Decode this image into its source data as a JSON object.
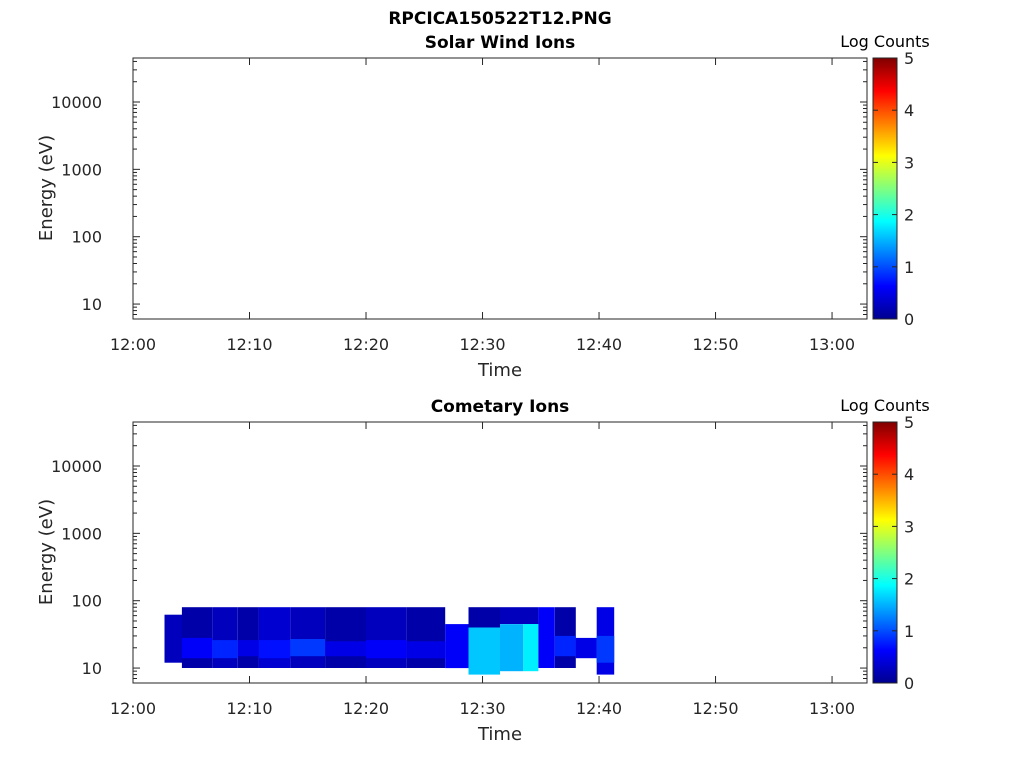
{
  "figure": {
    "title": "RPCICA150522T12.PNG"
  },
  "chart_data": [
    {
      "type": "heatmap",
      "title": "Solar Wind Ions",
      "xlabel": "Time",
      "ylabel": "Energy (eV)",
      "x_range": [
        "12:00",
        "13:03"
      ],
      "x_ticks": [
        "12:00",
        "12:10",
        "12:20",
        "12:30",
        "12:40",
        "12:50",
        "13:00"
      ],
      "y_scale": "log",
      "y_range": [
        6,
        45000
      ],
      "y_ticks": [
        "10",
        "100",
        "1000",
        "10000"
      ],
      "colorbar": {
        "label": "Log Counts",
        "min": 0,
        "max": 5,
        "ticks": [
          "0",
          "1",
          "2",
          "3",
          "4",
          "5"
        ]
      },
      "cells": []
    },
    {
      "type": "heatmap",
      "title": "Cometary Ions",
      "xlabel": "Time",
      "ylabel": "Energy (eV)",
      "x_range": [
        "12:00",
        "13:03"
      ],
      "x_ticks": [
        "12:00",
        "12:10",
        "12:20",
        "12:30",
        "12:40",
        "12:50",
        "13:00"
      ],
      "y_scale": "log",
      "y_range": [
        6,
        45000
      ],
      "y_ticks": [
        "10",
        "100",
        "1000",
        "10000"
      ],
      "colorbar": {
        "label": "Log Counts",
        "min": 0,
        "max": 5,
        "ticks": [
          "0",
          "1",
          "2",
          "3",
          "4",
          "5"
        ]
      },
      "cells": [
        {
          "t0": 2.7,
          "t1": 4.2,
          "e0": 12,
          "e1": 62,
          "v": 0.3
        },
        {
          "t0": 4.2,
          "t1": 6.8,
          "e0": 10,
          "e1": 80,
          "v": 0.2
        },
        {
          "t0": 4.2,
          "t1": 6.8,
          "e0": 14,
          "e1": 28,
          "v": 0.6
        },
        {
          "t0": 6.8,
          "t1": 9.0,
          "e0": 10,
          "e1": 80,
          "v": 0.3
        },
        {
          "t0": 6.8,
          "t1": 9.0,
          "e0": 14,
          "e1": 26,
          "v": 0.8
        },
        {
          "t0": 9.0,
          "t1": 10.8,
          "e0": 10,
          "e1": 80,
          "v": 0.2
        },
        {
          "t0": 9.0,
          "t1": 10.8,
          "e0": 15,
          "e1": 26,
          "v": 0.5
        },
        {
          "t0": 10.8,
          "t1": 13.5,
          "e0": 10,
          "e1": 80,
          "v": 0.4
        },
        {
          "t0": 10.8,
          "t1": 13.5,
          "e0": 14,
          "e1": 26,
          "v": 0.7
        },
        {
          "t0": 13.5,
          "t1": 16.5,
          "e0": 10,
          "e1": 80,
          "v": 0.3
        },
        {
          "t0": 13.5,
          "t1": 16.5,
          "e0": 15,
          "e1": 27,
          "v": 0.9
        },
        {
          "t0": 16.5,
          "t1": 20.0,
          "e0": 10,
          "e1": 80,
          "v": 0.2
        },
        {
          "t0": 16.5,
          "t1": 20.0,
          "e0": 15,
          "e1": 25,
          "v": 0.5
        },
        {
          "t0": 20.0,
          "t1": 23.5,
          "e0": 10,
          "e1": 80,
          "v": 0.3
        },
        {
          "t0": 20.0,
          "t1": 23.5,
          "e0": 14,
          "e1": 26,
          "v": 0.6
        },
        {
          "t0": 23.5,
          "t1": 26.8,
          "e0": 10,
          "e1": 80,
          "v": 0.2
        },
        {
          "t0": 23.5,
          "t1": 26.8,
          "e0": 14,
          "e1": 25,
          "v": 0.5
        },
        {
          "t0": 26.8,
          "t1": 28.8,
          "e0": 10,
          "e1": 45,
          "v": 0.6
        },
        {
          "t0": 28.8,
          "t1": 31.5,
          "e0": 8,
          "e1": 40,
          "v": 1.6
        },
        {
          "t0": 31.5,
          "t1": 33.5,
          "e0": 9,
          "e1": 45,
          "v": 1.5
        },
        {
          "t0": 33.5,
          "t1": 34.8,
          "e0": 9,
          "e1": 50,
          "v": 1.8
        },
        {
          "t0": 31.5,
          "t1": 34.8,
          "e0": 45,
          "e1": 80,
          "v": 0.3
        },
        {
          "t0": 28.8,
          "t1": 31.5,
          "e0": 40,
          "e1": 80,
          "v": 0.2
        },
        {
          "t0": 34.8,
          "t1": 36.2,
          "e0": 10,
          "e1": 80,
          "v": 0.6
        },
        {
          "t0": 36.2,
          "t1": 38.0,
          "e0": 10,
          "e1": 80,
          "v": 0.2
        },
        {
          "t0": 36.2,
          "t1": 38.0,
          "e0": 15,
          "e1": 30,
          "v": 0.8
        },
        {
          "t0": 38.0,
          "t1": 39.8,
          "e0": 14,
          "e1": 28,
          "v": 0.5
        },
        {
          "t0": 39.8,
          "t1": 41.3,
          "e0": 8,
          "e1": 80,
          "v": 0.5
        },
        {
          "t0": 39.8,
          "t1": 41.3,
          "e0": 12,
          "e1": 30,
          "v": 0.9
        }
      ]
    }
  ]
}
